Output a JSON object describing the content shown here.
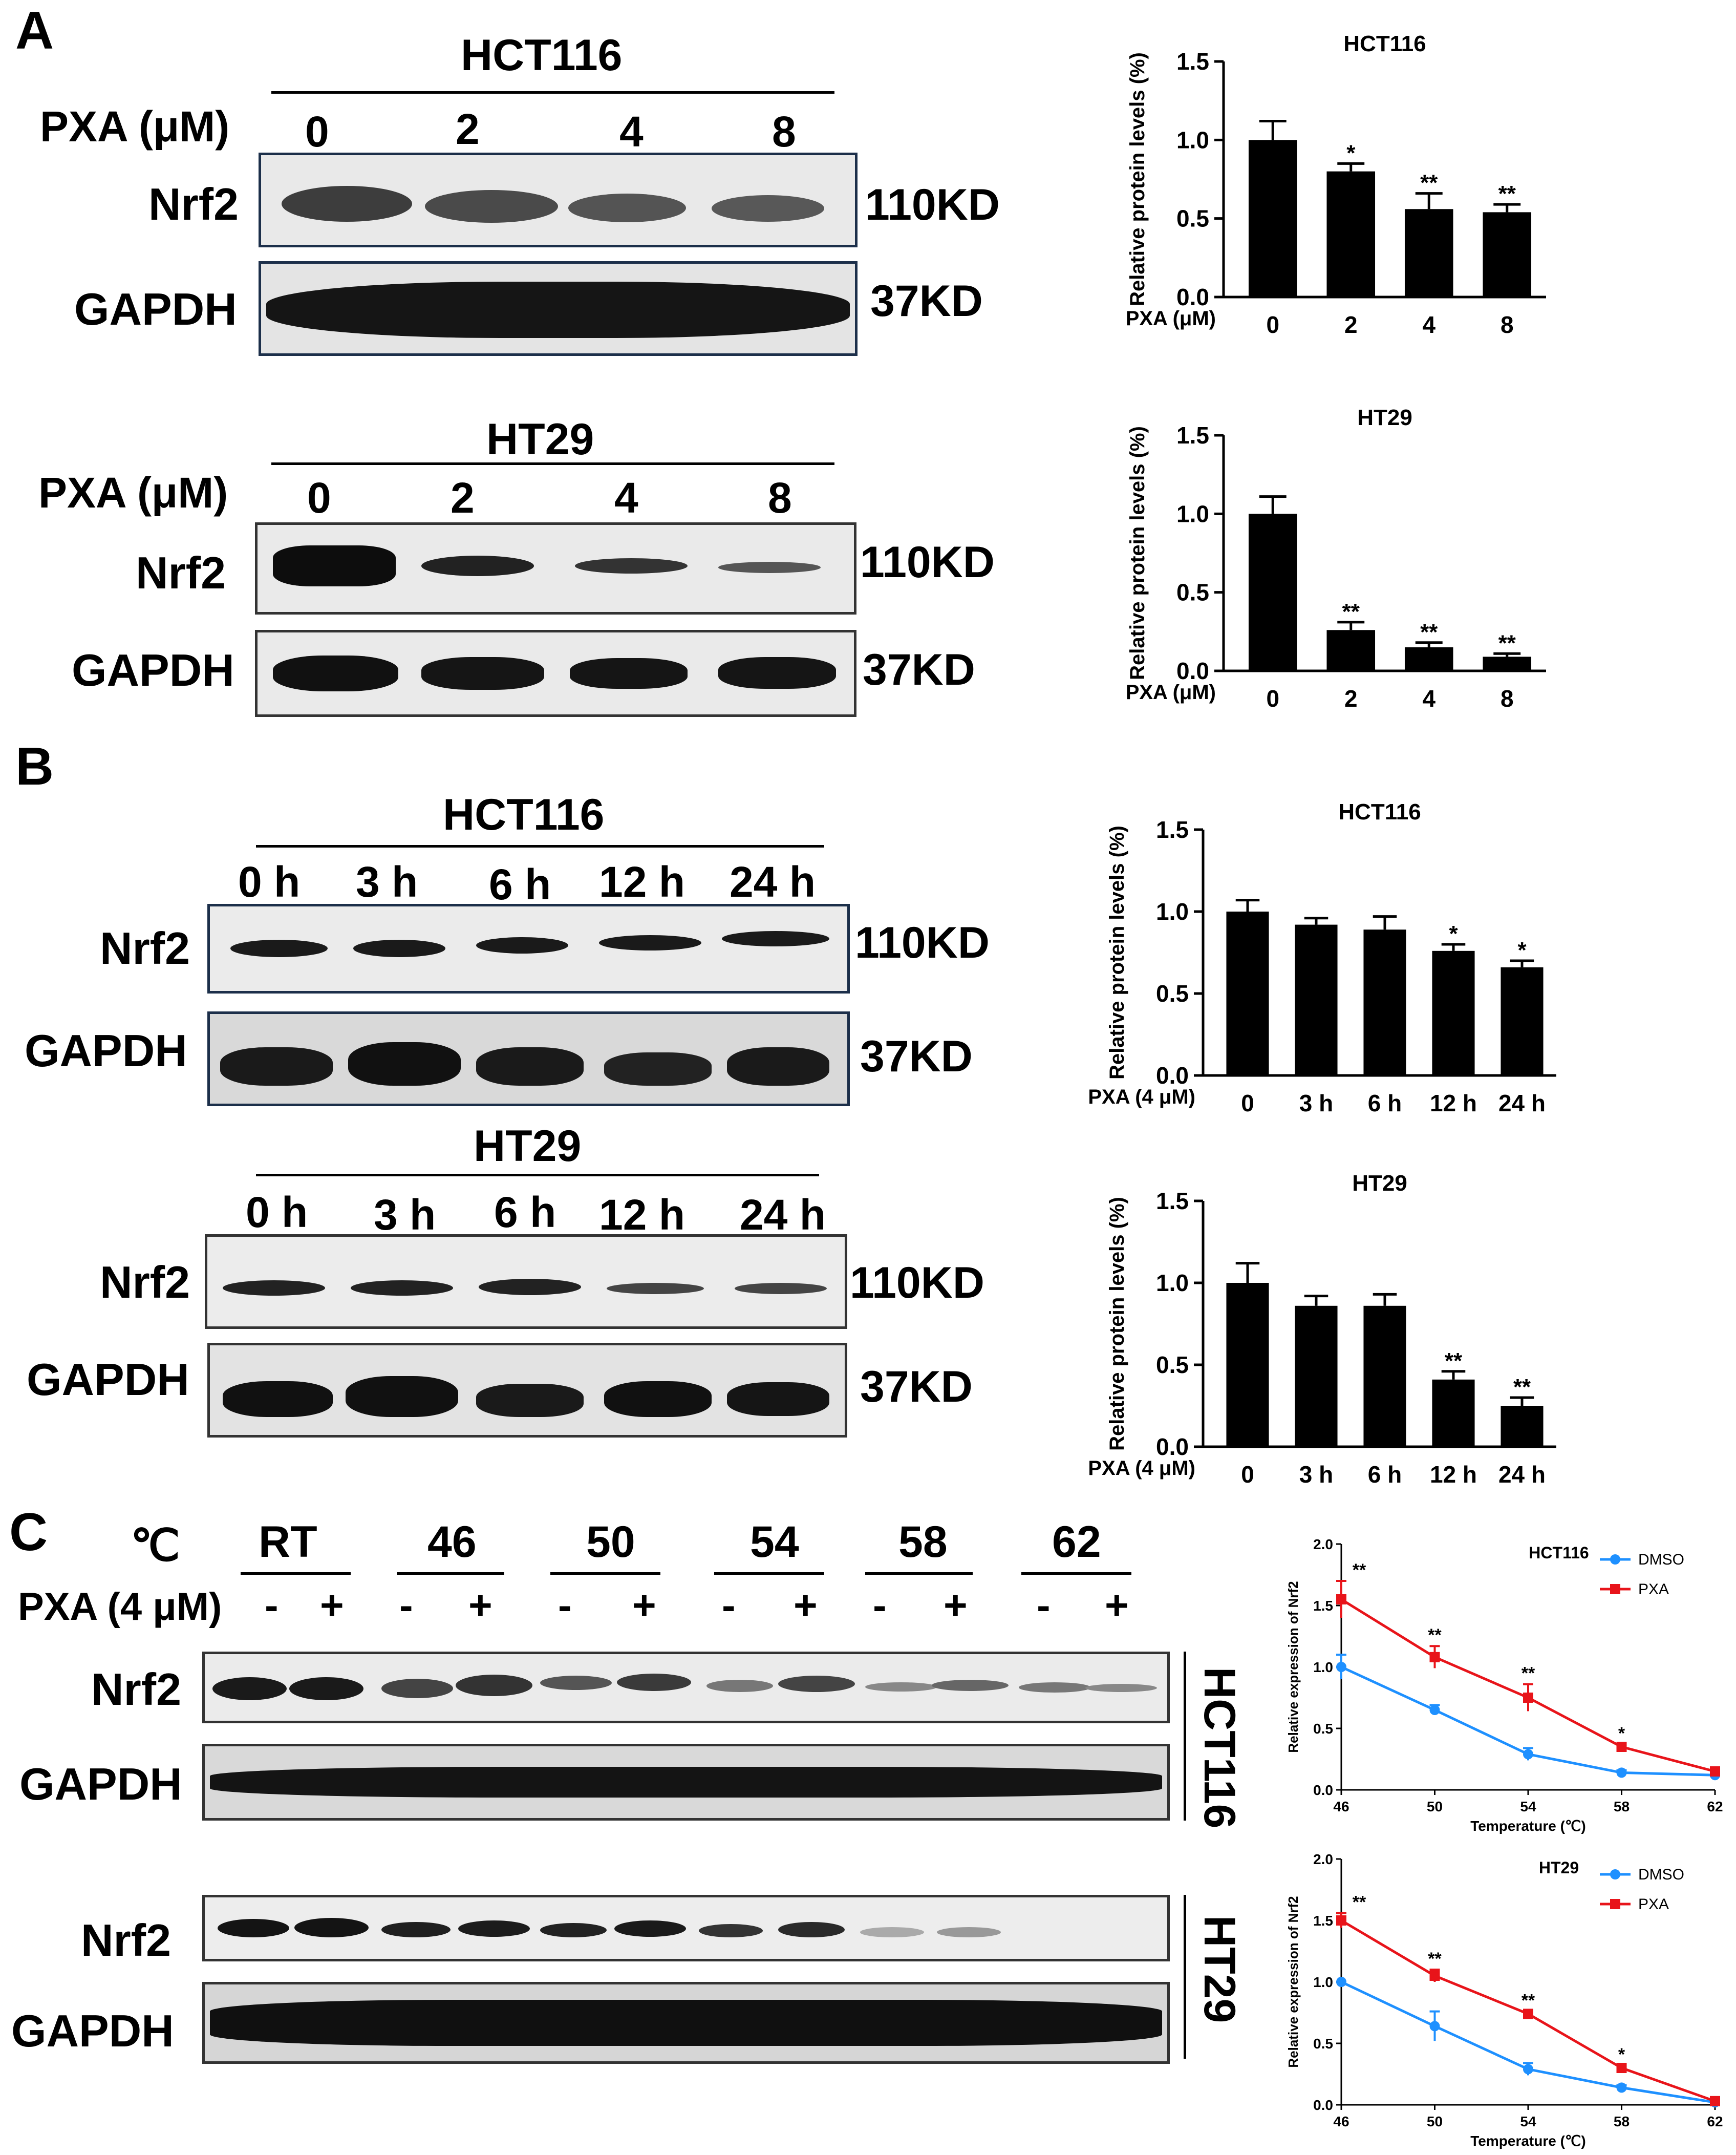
{
  "panels": {
    "a": "A",
    "b": "B",
    "c": "C"
  },
  "common": {
    "nrf2": "Nrf2",
    "gapdh": "GAPDH",
    "kd110": "110KD",
    "kd37": "37KD",
    "pxa_um": "PXA (μM)",
    "pxa_4um": "PXA (4 μM)",
    "celsius": "℃",
    "minus": "-",
    "plus": "+"
  },
  "blots": {
    "a1": {
      "cell": "HCT116",
      "doses": [
        "0",
        "2",
        "4",
        "8"
      ]
    },
    "a2": {
      "cell": "HT29",
      "doses": [
        "0",
        "2",
        "4",
        "8"
      ]
    },
    "b1": {
      "cell": "HCT116",
      "times": [
        "0 h",
        "3 h",
        "6 h",
        "12 h",
        "24 h"
      ]
    },
    "b2": {
      "cell": "HT29",
      "times": [
        "0 h",
        "3 h",
        "6 h",
        "12 h",
        "24 h"
      ]
    },
    "c": {
      "temps": [
        "RT",
        "46",
        "50",
        "54",
        "58",
        "62"
      ],
      "side1": "HCT116",
      "side2": "HT29"
    }
  },
  "bar_axis": {
    "ylabel": "Relative protein levels (%)",
    "yticks": [
      "0.0",
      "0.5",
      "1.0",
      "1.5"
    ]
  },
  "chart_data": [
    {
      "type": "bar",
      "title": "HCT116",
      "xlabel": "PXA (μM)",
      "ylabel": "Relative protein levels (%)",
      "ylim": [
        0,
        1.5
      ],
      "categories": [
        "0",
        "2",
        "4",
        "8"
      ],
      "values": [
        1.0,
        0.8,
        0.56,
        0.54
      ],
      "errors": [
        0.12,
        0.05,
        0.1,
        0.05
      ],
      "annotations": [
        "",
        "*",
        "**",
        "**"
      ]
    },
    {
      "type": "bar",
      "title": "HT29",
      "xlabel": "PXA (μM)",
      "ylabel": "Relative protein levels (%)",
      "ylim": [
        0,
        1.5
      ],
      "categories": [
        "0",
        "2",
        "4",
        "8"
      ],
      "values": [
        1.0,
        0.26,
        0.15,
        0.09
      ],
      "errors": [
        0.11,
        0.05,
        0.03,
        0.02
      ],
      "annotations": [
        "",
        "**",
        "**",
        "**"
      ]
    },
    {
      "type": "bar",
      "title": "HCT116",
      "xlabel": "PXA (4 μM)",
      "ylabel": "Relative protein levels (%)",
      "ylim": [
        0,
        1.5
      ],
      "categories": [
        "0",
        "3 h",
        "6 h",
        "12 h",
        "24 h"
      ],
      "values": [
        1.0,
        0.92,
        0.89,
        0.76,
        0.66
      ],
      "errors": [
        0.07,
        0.04,
        0.08,
        0.04,
        0.04
      ],
      "annotations": [
        "",
        "",
        "",
        "*",
        "*"
      ]
    },
    {
      "type": "bar",
      "title": "HT29",
      "xlabel": "PXA (4 μM)",
      "ylabel": "Relative protein levels (%)",
      "ylim": [
        0,
        1.5
      ],
      "categories": [
        "0",
        "3 h",
        "6 h",
        "12 h",
        "24 h"
      ],
      "values": [
        1.0,
        0.86,
        0.86,
        0.41,
        0.25
      ],
      "errors": [
        0.12,
        0.06,
        0.07,
        0.05,
        0.05
      ],
      "annotations": [
        "",
        "",
        "",
        "**",
        "**"
      ]
    },
    {
      "type": "line",
      "title": "HCT116",
      "xlabel": "Temperature (℃)",
      "ylabel": "Relative expression of Nrf2",
      "ylim": [
        0,
        2.0
      ],
      "x": [
        46,
        50,
        54,
        58,
        62
      ],
      "yticks": [
        "0.0",
        "0.5",
        "1.0",
        "1.5",
        "2.0"
      ],
      "legend": "top-right",
      "series": [
        {
          "name": "DMSO",
          "color": "#1e90ff",
          "values": [
            1.0,
            0.65,
            0.29,
            0.14,
            0.12
          ],
          "errors": [
            0.1,
            0.04,
            0.05,
            0.02,
            0.01
          ]
        },
        {
          "name": "PXA",
          "color": "#e8141a",
          "values": [
            1.55,
            1.08,
            0.75,
            0.35,
            0.15
          ],
          "errors": [
            0.15,
            0.09,
            0.11,
            0.02,
            0.01
          ]
        }
      ],
      "annotations": [
        "**",
        "**",
        "**",
        "*",
        ""
      ]
    },
    {
      "type": "line",
      "title": "HT29",
      "xlabel": "Temperature (℃)",
      "ylabel": "Relative expression of Nrf2",
      "ylim": [
        0,
        2.0
      ],
      "x": [
        46,
        50,
        54,
        58,
        62
      ],
      "yticks": [
        "0.0",
        "0.5",
        "1.0",
        "1.5",
        "2.0"
      ],
      "legend": "top-right",
      "series": [
        {
          "name": "DMSO",
          "color": "#1e90ff",
          "values": [
            1.0,
            0.64,
            0.29,
            0.14,
            0.02
          ],
          "errors": [
            0.0,
            0.12,
            0.05,
            0.02,
            0.01
          ]
        },
        {
          "name": "PXA",
          "color": "#e8141a",
          "values": [
            1.5,
            1.05,
            0.74,
            0.3,
            0.03
          ],
          "errors": [
            0.06,
            0.05,
            0.02,
            0.02,
            0.01
          ]
        }
      ],
      "annotations": [
        "**",
        "**",
        "**",
        "*",
        ""
      ]
    }
  ]
}
